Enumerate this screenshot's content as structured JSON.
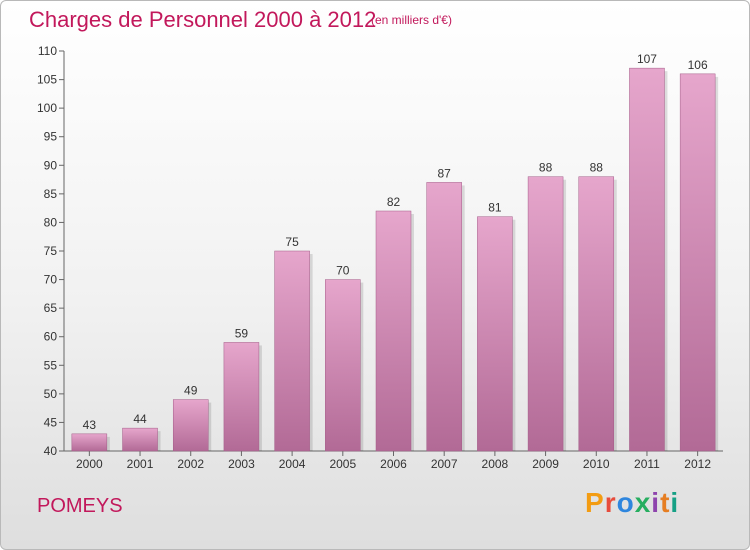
{
  "header": {
    "title": "Charges de Personnel 2000 à 2012",
    "subtitle": "(en milliers d'€)"
  },
  "footer": {
    "commune": "POMEYS",
    "brand_letters": [
      "P",
      "r",
      "o",
      "x",
      "i",
      "t",
      "i"
    ],
    "brand_colors": [
      "#f39c12",
      "#e74c3c",
      "#2e86de",
      "#27ae60",
      "#8e44ad",
      "#e67e22",
      "#16a085"
    ]
  },
  "chart_data": {
    "type": "bar",
    "title": "Charges de Personnel 2000 à 2012",
    "subtitle": "(en milliers d'€)",
    "categories": [
      "2000",
      "2001",
      "2002",
      "2003",
      "2004",
      "2005",
      "2006",
      "2007",
      "2008",
      "2009",
      "2010",
      "2011",
      "2012"
    ],
    "values": [
      43,
      44,
      49,
      59,
      75,
      70,
      82,
      87,
      81,
      88,
      88,
      107,
      106
    ],
    "xlabel": "",
    "ylabel": "",
    "ylim": [
      40,
      110
    ],
    "yticks": [
      40,
      45,
      50,
      55,
      60,
      65,
      70,
      75,
      80,
      85,
      90,
      95,
      100,
      105,
      110
    ],
    "grid": false,
    "legend": "none",
    "bar_color_top": "#e6a6cc",
    "bar_color_bottom": "#b26a96",
    "label_color": "#333333"
  }
}
